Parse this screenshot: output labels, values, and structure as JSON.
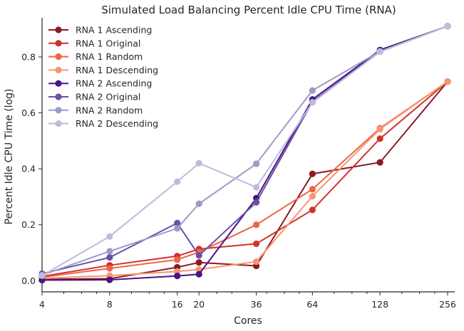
{
  "chart_data": {
    "type": "line",
    "title": "Simulated Load Balancing Percent Idle CPU Time (RNA)",
    "xlabel": "Cores",
    "ylabel": "Percent Idle CPU Time (log)",
    "x_scale": "log2",
    "x": [
      4,
      8,
      16,
      20,
      36,
      64,
      128,
      256
    ],
    "xticks": [
      "4",
      "8",
      "16",
      "20",
      "36",
      "64",
      "128",
      "256"
    ],
    "ylim": [
      -0.04,
      0.94
    ],
    "yticks": [
      "0.0",
      "0.2",
      "0.4",
      "0.6",
      "0.8"
    ],
    "legend_position": "top-left",
    "grid": false,
    "series": [
      {
        "name": "RNA 1 Ascending",
        "color": "#8b1a22",
        "values": [
          0.005,
          0.007,
          0.048,
          0.065,
          0.053,
          0.382,
          0.423,
          0.712
        ]
      },
      {
        "name": "RNA 1 Original",
        "color": "#d2322d",
        "values": [
          0.015,
          0.055,
          0.088,
          0.113,
          0.132,
          0.253,
          0.508,
          0.712
        ]
      },
      {
        "name": "RNA 1 Random",
        "color": "#ee6548",
        "values": [
          0.012,
          0.044,
          0.075,
          0.102,
          0.2,
          0.327,
          0.545,
          0.712
        ]
      },
      {
        "name": "RNA 1 Descending",
        "color": "#f8956f",
        "values": [
          0.008,
          0.018,
          0.033,
          0.04,
          0.068,
          0.302,
          0.542,
          0.712
        ]
      },
      {
        "name": "RNA 2 Ascending",
        "color": "#4a1486",
        "values": [
          0.002,
          0.003,
          0.017,
          0.023,
          0.295,
          0.648,
          0.825,
          0.91
        ]
      },
      {
        "name": "RNA 2 Original",
        "color": "#6a51a3",
        "values": [
          0.025,
          0.083,
          0.206,
          0.09,
          0.28,
          0.64,
          0.82,
          0.91
        ]
      },
      {
        "name": "RNA 2 Random",
        "color": "#9e9ac8",
        "values": [
          0.02,
          0.105,
          0.187,
          0.275,
          0.418,
          0.68,
          0.82,
          0.91
        ]
      },
      {
        "name": "RNA 2 Descending",
        "color": "#bcbddc",
        "values": [
          0.018,
          0.158,
          0.354,
          0.42,
          0.334,
          0.637,
          0.818,
          0.91
        ]
      }
    ]
  }
}
